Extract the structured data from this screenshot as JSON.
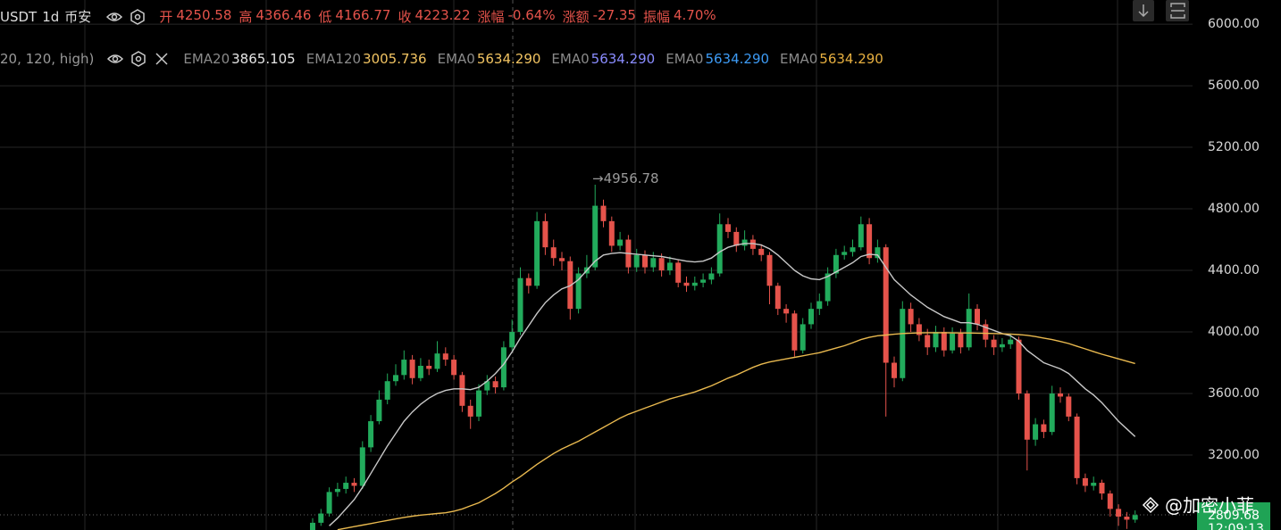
{
  "chart_data": {
    "type": "candlestick",
    "symbol": "USDT",
    "interval": "1d",
    "exchange": "币安",
    "quote": [
      {
        "label": "开",
        "value": "4250.58"
      },
      {
        "label": "高",
        "value": "4366.46"
      },
      {
        "label": "低",
        "value": "4166.77"
      },
      {
        "label": "收",
        "value": "4223.22"
      },
      {
        "label": "涨幅",
        "value": "-0.64%"
      },
      {
        "label": "涨额",
        "value": "-27.35"
      },
      {
        "label": "振幅",
        "value": "4.70%"
      }
    ],
    "indicator_params": "20, 120, high)",
    "up_color": "#22ab5c",
    "down_color": "#e5534b",
    "open": [
      2700,
      2760,
      2820,
      2960,
      2980,
      3020,
      3000,
      3250,
      3420,
      3560,
      3680,
      3720,
      3820,
      3700,
      3780,
      3760,
      3860,
      3820,
      3720,
      3520,
      3450,
      3620,
      3680,
      3640,
      3900,
      4000,
      4350,
      4300,
      4720,
      4550,
      4480,
      4460,
      4150,
      4380,
      4420,
      4820,
      4720,
      4560,
      4600,
      4420,
      4500,
      4420,
      4480,
      4400,
      4450,
      4320,
      4300,
      4320,
      4340,
      4380,
      4700,
      4650,
      4560,
      4600,
      4540,
      4500,
      4300,
      4150,
      4120,
      3880,
      4050,
      4150,
      4200,
      4380,
      4500,
      4520,
      4550,
      4700,
      4480,
      4550,
      3800,
      3700,
      4150,
      4050,
      3980,
      3900,
      4000,
      3880,
      3990,
      3900,
      4150,
      4050,
      3950,
      3900,
      3920,
      3950,
      3600,
      3300,
      3400,
      3350,
      3600,
      3580,
      3450,
      3050,
      3000,
      3020,
      2950,
      2850,
      2800,
      2780
    ],
    "high": [
      2790,
      2850,
      2990,
      3020,
      3060,
      3050,
      3290,
      3460,
      3620,
      3730,
      3790,
      3880,
      3850,
      3830,
      3820,
      3940,
      3900,
      3850,
      3740,
      3560,
      3660,
      3720,
      3710,
      3940,
      4080,
      4420,
      4380,
      4780,
      4770,
      4600,
      4520,
      4490,
      4420,
      4500,
      4956.78,
      4860,
      4750,
      4650,
      4630,
      4540,
      4530,
      4520,
      4510,
      4490,
      4470,
      4360,
      4360,
      4380,
      4420,
      4770,
      4740,
      4680,
      4660,
      4630,
      4570,
      4520,
      4320,
      4180,
      4140,
      4090,
      4190,
      4250,
      4420,
      4540,
      4560,
      4600,
      4750,
      4740,
      4600,
      4570,
      3840,
      4200,
      4190,
      4090,
      4020,
      4040,
      4030,
      4030,
      4020,
      4250,
      4180,
      4080,
      3980,
      3960,
      3990,
      3970,
      3620,
      3440,
      3430,
      3650,
      3640,
      3600,
      3470,
      3080,
      3060,
      3040,
      2970,
      2880,
      2830,
      2840
    ],
    "low": [
      2680,
      2740,
      2800,
      2930,
      2950,
      2960,
      2980,
      3220,
      3400,
      3530,
      3650,
      3690,
      3660,
      3680,
      3720,
      3740,
      3780,
      3690,
      3480,
      3370,
      3420,
      3590,
      3600,
      3620,
      3880,
      3980,
      4250,
      4280,
      4500,
      4430,
      4400,
      4080,
      4120,
      4350,
      4400,
      4680,
      4520,
      4530,
      4380,
      4390,
      4380,
      4390,
      4360,
      4370,
      4290,
      4260,
      4270,
      4290,
      4310,
      4360,
      4610,
      4520,
      4530,
      4500,
      4460,
      4180,
      4110,
      4060,
      3840,
      3860,
      4020,
      4110,
      4170,
      4350,
      4470,
      4490,
      4530,
      4440,
      4450,
      3450,
      3640,
      3680,
      4000,
      3940,
      3850,
      3870,
      3840,
      3860,
      3860,
      3880,
      4010,
      3900,
      3850,
      3870,
      3890,
      3560,
      3100,
      3260,
      3310,
      3330,
      3540,
      3420,
      3010,
      2960,
      2970,
      2910,
      2800,
      2740,
      2720,
      2760
    ],
    "close": [
      2760,
      2820,
      2960,
      2980,
      3020,
      3000,
      3250,
      3420,
      3560,
      3680,
      3720,
      3820,
      3700,
      3780,
      3760,
      3860,
      3820,
      3720,
      3520,
      3450,
      3620,
      3680,
      3640,
      3900,
      4000,
      4350,
      4300,
      4720,
      4550,
      4480,
      4460,
      4150,
      4380,
      4420,
      4820,
      4720,
      4560,
      4600,
      4420,
      4500,
      4420,
      4480,
      4400,
      4450,
      4320,
      4300,
      4320,
      4340,
      4380,
      4700,
      4650,
      4560,
      4600,
      4540,
      4500,
      4300,
      4150,
      4120,
      3880,
      4050,
      4150,
      4200,
      4380,
      4500,
      4520,
      4550,
      4700,
      4480,
      4550,
      3800,
      3700,
      4150,
      4050,
      3980,
      3900,
      4000,
      3880,
      3990,
      3900,
      4150,
      4050,
      3950,
      3900,
      3920,
      3950,
      3600,
      3300,
      3400,
      3350,
      3600,
      3580,
      3450,
      3050,
      3000,
      3020,
      2950,
      2850,
      2800,
      2780,
      2810
    ],
    "series": [
      {
        "name": "EMA20",
        "legend_value": "3865.105",
        "color": "#c8c8c8",
        "legend_color": "#e6e6e6",
        "values": [
          null,
          null,
          2740,
          2790,
          2850,
          2910,
          2990,
          3080,
          3170,
          3260,
          3340,
          3420,
          3480,
          3530,
          3570,
          3600,
          3620,
          3630,
          3630,
          3625,
          3640,
          3680,
          3730,
          3790,
          3870,
          3960,
          4040,
          4120,
          4190,
          4240,
          4280,
          4300,
          4340,
          4400,
          4460,
          4500,
          4510,
          4515,
          4510,
          4505,
          4500,
          4495,
          4490,
          4480,
          4470,
          4460,
          4455,
          4460,
          4480,
          4520,
          4550,
          4565,
          4575,
          4575,
          4565,
          4540,
          4500,
          4450,
          4400,
          4365,
          4345,
          4340,
          4360,
          4390,
          4420,
          4450,
          4490,
          4505,
          4500,
          4420,
          4340,
          4290,
          4240,
          4200,
          4160,
          4130,
          4100,
          4080,
          4060,
          4060,
          4050,
          4030,
          4010,
          3990,
          3975,
          3940,
          3880,
          3840,
          3800,
          3780,
          3760,
          3730,
          3680,
          3630,
          3590,
          3540,
          3480,
          3420,
          3370,
          3320
        ]
      },
      {
        "name": "EMA120",
        "legend_value": "3005.736",
        "color": "#e9b94f",
        "legend_color": "#f2c462",
        "values": [
          null,
          null,
          null,
          2715,
          2725,
          2735,
          2745,
          2755,
          2765,
          2775,
          2785,
          2795,
          2803,
          2810,
          2815,
          2820,
          2825,
          2835,
          2850,
          2870,
          2890,
          2920,
          2950,
          2985,
          3025,
          3060,
          3100,
          3140,
          3175,
          3210,
          3240,
          3265,
          3290,
          3320,
          3350,
          3380,
          3410,
          3440,
          3465,
          3485,
          3505,
          3525,
          3545,
          3565,
          3580,
          3595,
          3610,
          3630,
          3650,
          3675,
          3700,
          3720,
          3745,
          3770,
          3790,
          3805,
          3815,
          3825,
          3835,
          3845,
          3855,
          3865,
          3880,
          3895,
          3910,
          3930,
          3950,
          3965,
          3975,
          3980,
          3985,
          3990,
          3992,
          3994,
          3995,
          3995,
          3995,
          3994,
          3993,
          3993,
          3992,
          3991,
          3990,
          3988,
          3986,
          3983,
          3978,
          3970,
          3960,
          3950,
          3938,
          3925,
          3907,
          3890,
          3872,
          3855,
          3840,
          3825,
          3810,
          3795
        ]
      }
    ],
    "other_indicators": [
      {
        "name": "EMA0",
        "legend_value": "5634.290",
        "color": "#f2c462"
      },
      {
        "name": "EMA0",
        "legend_value": "5634.290",
        "color": "#8a8cff"
      },
      {
        "name": "EMA0",
        "legend_value": "5634.290",
        "color": "#3d9bf5"
      },
      {
        "name": "EMA0",
        "legend_value": "5634.290",
        "color": "#e8b040"
      }
    ],
    "max_label": "→4956.78",
    "last_price": "2809.68",
    "countdown": "12:09:13",
    "watermark": "@加密小菲",
    "ylim": [
      2713,
      6157
    ],
    "yticks": [
      {
        "value": 6000,
        "label": "6000.00"
      },
      {
        "value": 5600,
        "label": "5600.00"
      },
      {
        "value": 5200,
        "label": "5200.00"
      },
      {
        "value": 4800,
        "label": "4800.00"
      },
      {
        "value": 4400,
        "label": "4400.00"
      },
      {
        "value": 4000,
        "label": "4000.00"
      },
      {
        "value": 3600,
        "label": "3600.00"
      },
      {
        "value": 3200,
        "label": "3200.00"
      }
    ],
    "grid": true
  }
}
